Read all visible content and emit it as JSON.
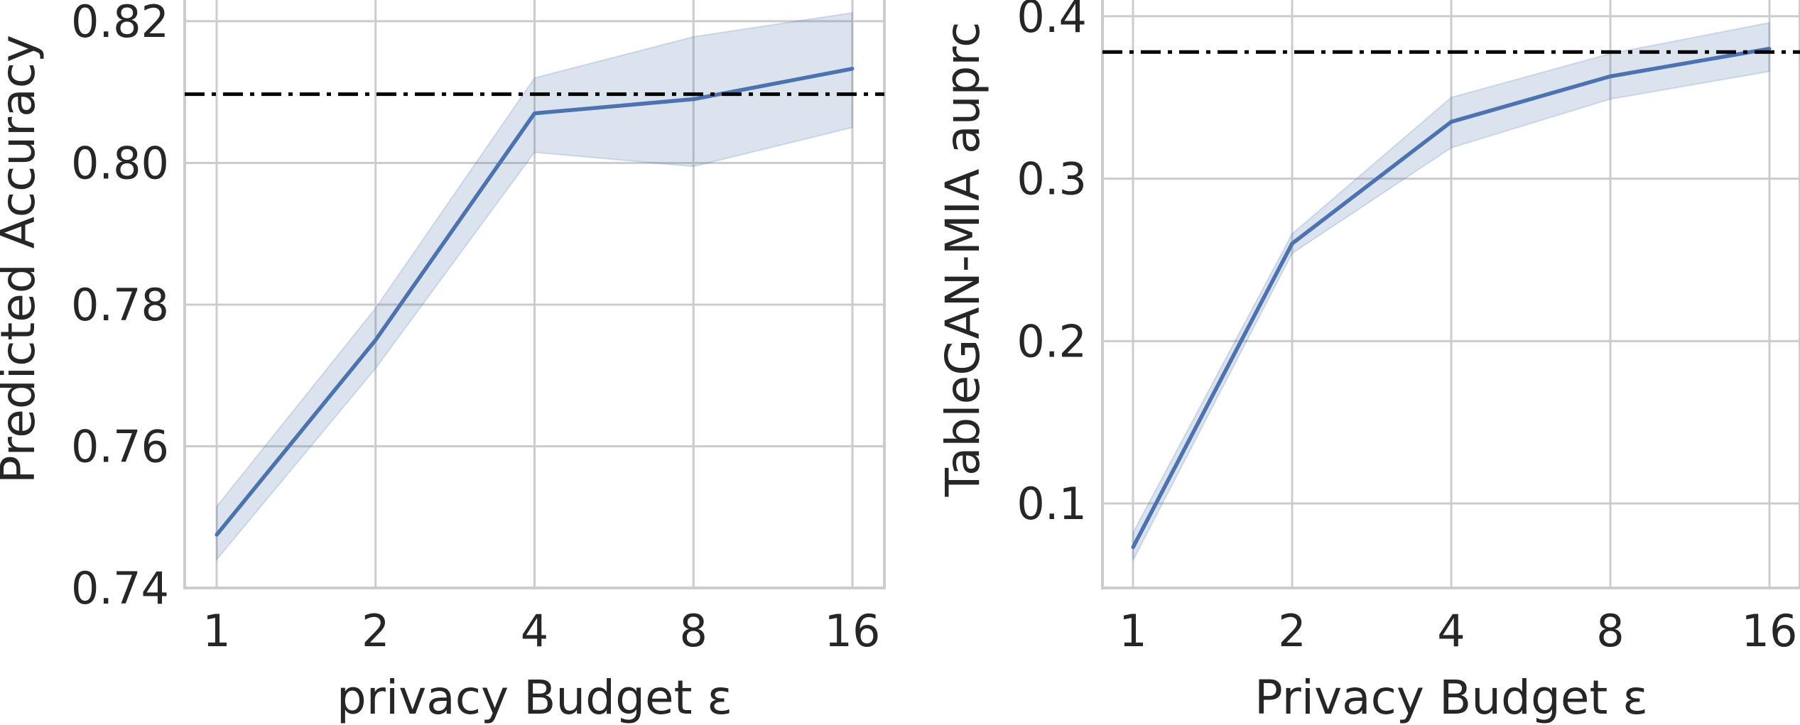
{
  "chart_data": [
    {
      "type": "line",
      "title": "",
      "xlabel": "privacy Budget ε",
      "ylabel": "Predicted Accuracy",
      "x_scale": "log2",
      "x": [
        1,
        2,
        4,
        8,
        16
      ],
      "x_ticks": [
        "1",
        "2",
        "4",
        "8",
        "16"
      ],
      "ylim": [
        0.74,
        0.823
      ],
      "y_ticks": [
        "0.74",
        "0.76",
        "0.78",
        "0.80",
        "0.82"
      ],
      "grid": true,
      "series": [
        {
          "values": [
            0.7475,
            0.775,
            0.807,
            0.809,
            0.8133
          ],
          "lower": [
            0.744,
            0.771,
            0.8015,
            0.7995,
            0.805
          ],
          "upper": [
            0.7515,
            0.7795,
            0.812,
            0.8178,
            0.8212
          ],
          "color": "#4c72b0"
        }
      ],
      "reference_line": {
        "y": 0.8097,
        "style": "dash-dot",
        "color": "#000000"
      }
    },
    {
      "type": "line",
      "title": "",
      "xlabel": "Privacy Budget ε",
      "ylabel": "TableGAN-MIA auprc",
      "x_scale": "log2",
      "x": [
        1,
        2,
        4,
        8,
        16
      ],
      "x_ticks": [
        "1",
        "2",
        "4",
        "8",
        "16"
      ],
      "ylim": [
        0.048,
        0.41
      ],
      "y_ticks": [
        "0.1",
        "0.2",
        "0.3",
        "0.4"
      ],
      "grid": true,
      "series": [
        {
          "values": [
            0.073,
            0.26,
            0.335,
            0.363,
            0.38
          ],
          "lower": [
            0.065,
            0.254,
            0.319,
            0.349,
            0.366
          ],
          "upper": [
            0.082,
            0.266,
            0.35,
            0.377,
            0.396
          ],
          "color": "#4c72b0"
        }
      ],
      "reference_line": {
        "y": 0.378,
        "style": "dash-dot",
        "color": "#000000"
      }
    }
  ]
}
